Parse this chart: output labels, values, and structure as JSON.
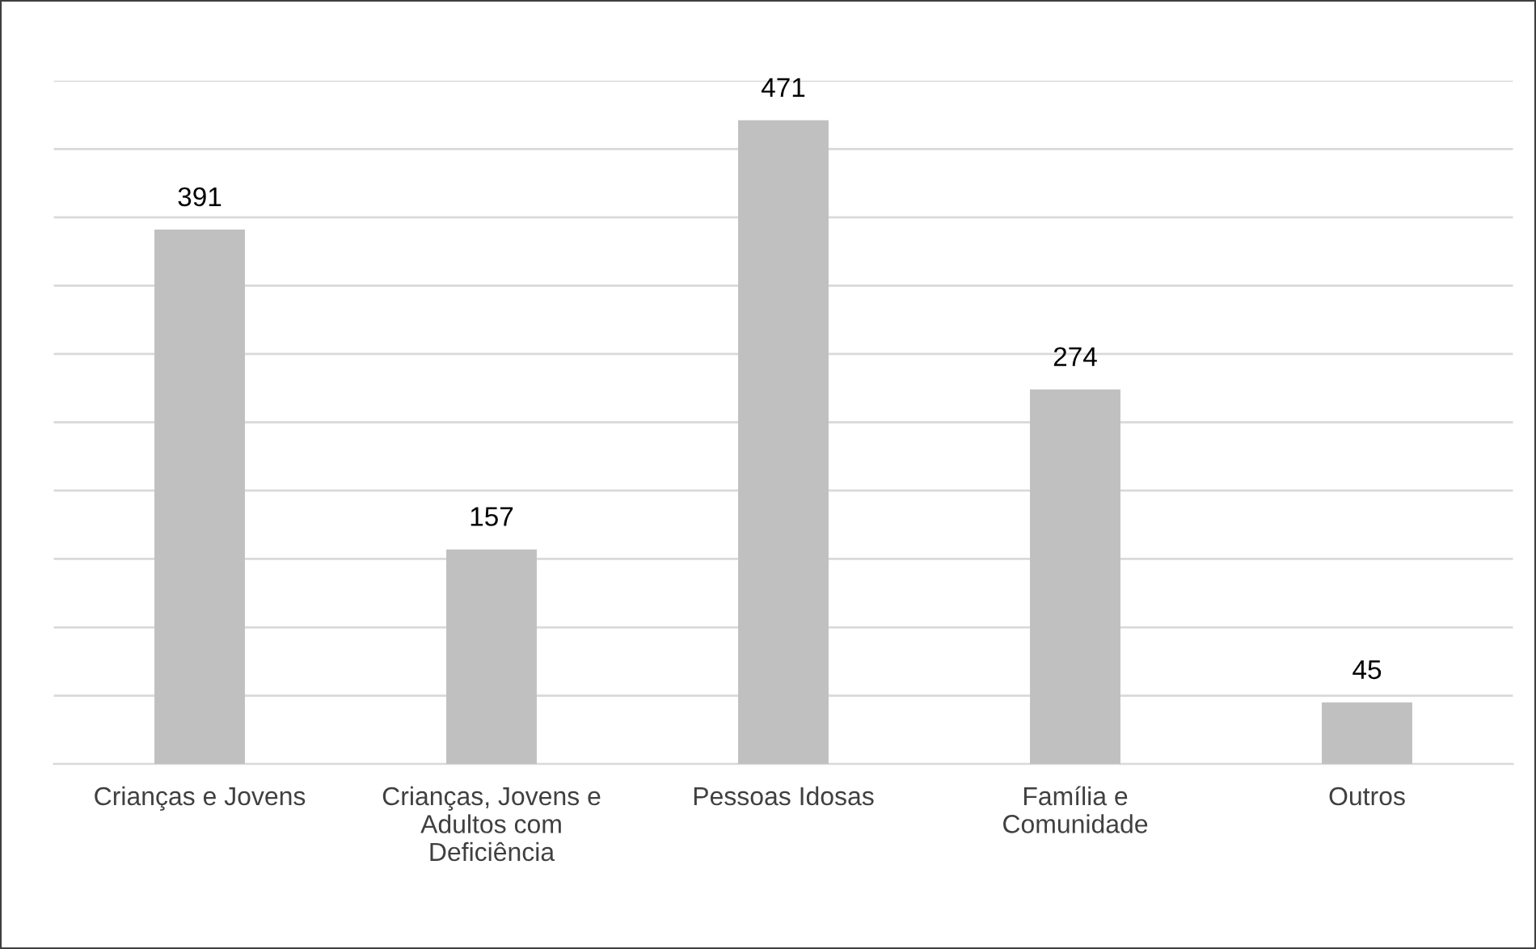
{
  "chart_data": {
    "type": "bar",
    "categories": [
      "Crianças e Jovens",
      "Crianças, Jovens e\nAdultos com\nDeficiência",
      "Pessoas Idosas",
      "Família e\nComunidade",
      "Outros"
    ],
    "values": [
      391,
      157,
      471,
      274,
      45
    ],
    "color": "#c0c0c0",
    "ylim": [
      0,
      500
    ],
    "yticks": [
      {
        "value": 0,
        "label": null
      },
      {
        "value": 50,
        "label": null
      },
      {
        "value": 100,
        "label": null
      },
      {
        "value": 150,
        "label": null
      },
      {
        "value": 200,
        "label": null
      },
      {
        "value": 250,
        "label": null
      },
      {
        "value": 300,
        "label": null
      },
      {
        "value": 350,
        "label": null
      },
      {
        "value": 400,
        "label": null
      },
      {
        "value": 450,
        "label": null
      },
      {
        "value": 500,
        "label": null
      }
    ],
    "grid": "y",
    "data_labels": true,
    "tick_labels": "x",
    "legend": false
  }
}
